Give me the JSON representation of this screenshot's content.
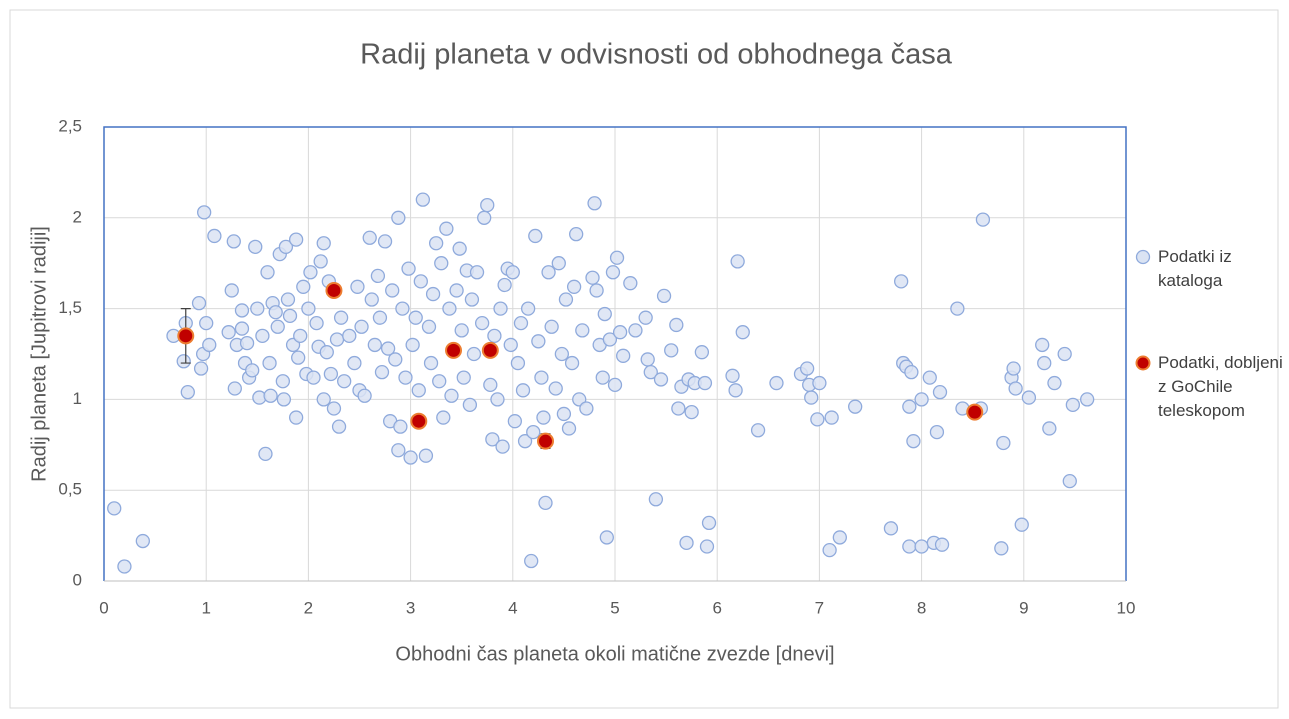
{
  "chart_data": {
    "type": "scatter",
    "title": "Radij planeta v odvisnosti od obhodnega časa",
    "xlabel": "Obhodni čas planeta okoli matične zvezde [dnevi]",
    "ylabel": "Radij planeta [Jupitrovi radiji]",
    "xlim": [
      0,
      10
    ],
    "xticks": [
      0,
      1,
      2,
      3,
      4,
      5,
      6,
      7,
      8,
      9,
      10
    ],
    "ylim": [
      0,
      2.5
    ],
    "yticks": [
      0,
      {
        "value": 0.5,
        "label": "0,5"
      },
      1,
      {
        "value": 1.5,
        "label": "1,5"
      },
      2,
      {
        "value": 2.5,
        "label": "2,5"
      }
    ],
    "grid": true,
    "legend": "right",
    "series": [
      {
        "name": "Podatki iz kataloga",
        "color": "#dae3f3",
        "edgecolor": "#8faadc",
        "x": [
          0.1,
          0.2,
          0.38,
          0.68,
          0.78,
          0.8,
          0.82,
          0.93,
          0.95,
          0.97,
          0.98,
          1.0,
          1.03,
          1.08,
          1.22,
          1.25,
          1.27,
          1.28,
          1.3,
          1.35,
          1.35,
          1.38,
          1.4,
          1.42,
          1.45,
          1.48,
          1.5,
          1.52,
          1.55,
          1.58,
          1.6,
          1.62,
          1.63,
          1.65,
          1.68,
          1.7,
          1.72,
          1.75,
          1.76,
          1.78,
          1.8,
          1.82,
          1.85,
          1.88,
          1.88,
          1.9,
          1.92,
          1.95,
          1.98,
          2.0,
          2.02,
          2.05,
          2.08,
          2.1,
          2.12,
          2.15,
          2.15,
          2.18,
          2.2,
          2.22,
          2.25,
          2.28,
          2.3,
          2.32,
          2.35,
          2.4,
          2.45,
          2.48,
          2.5,
          2.52,
          2.55,
          2.6,
          2.62,
          2.65,
          2.68,
          2.7,
          2.72,
          2.75,
          2.78,
          2.8,
          2.82,
          2.85,
          2.88,
          2.88,
          2.9,
          2.92,
          2.95,
          2.98,
          3.0,
          3.02,
          3.05,
          3.08,
          3.1,
          3.12,
          3.15,
          3.18,
          3.2,
          3.22,
          3.25,
          3.28,
          3.3,
          3.32,
          3.35,
          3.38,
          3.4,
          3.45,
          3.48,
          3.5,
          3.52,
          3.55,
          3.58,
          3.6,
          3.62,
          3.65,
          3.7,
          3.72,
          3.75,
          3.78,
          3.8,
          3.82,
          3.85,
          3.88,
          3.9,
          3.92,
          3.95,
          3.98,
          4.0,
          4.02,
          4.05,
          4.08,
          4.1,
          4.12,
          4.15,
          4.18,
          4.2,
          4.22,
          4.25,
          4.28,
          4.3,
          4.32,
          4.35,
          4.38,
          4.42,
          4.45,
          4.48,
          4.5,
          4.52,
          4.55,
          4.58,
          4.6,
          4.62,
          4.65,
          4.68,
          4.72,
          4.78,
          4.8,
          4.82,
          4.85,
          4.88,
          4.9,
          4.92,
          4.95,
          4.98,
          5.0,
          5.02,
          5.05,
          5.08,
          5.15,
          5.2,
          5.3,
          5.32,
          5.35,
          5.4,
          5.45,
          5.48,
          5.55,
          5.6,
          5.62,
          5.65,
          5.7,
          5.72,
          5.75,
          5.78,
          5.85,
          5.88,
          5.9,
          5.92,
          6.15,
          6.2,
          6.25,
          6.18,
          6.4,
          6.58,
          6.82,
          6.88,
          6.9,
          6.92,
          6.98,
          7.0,
          7.1,
          7.12,
          7.2,
          7.35,
          7.7,
          7.8,
          7.82,
          7.85,
          7.88,
          7.88,
          7.9,
          7.92,
          8.0,
          8.0,
          8.08,
          8.12,
          8.15,
          8.18,
          8.2,
          8.35,
          8.4,
          8.58,
          8.6,
          8.78,
          8.8,
          8.88,
          8.9,
          8.92,
          8.98,
          9.05,
          9.18,
          9.2,
          9.25,
          9.3,
          9.4,
          9.45,
          9.48,
          9.62
        ],
        "values": [
          0.4,
          0.08,
          0.22,
          1.35,
          1.21,
          1.42,
          1.04,
          1.53,
          1.17,
          1.25,
          2.03,
          1.42,
          1.3,
          1.9,
          1.37,
          1.6,
          1.87,
          1.06,
          1.3,
          1.49,
          1.39,
          1.2,
          1.31,
          1.12,
          1.16,
          1.84,
          1.5,
          1.01,
          1.35,
          0.7,
          1.7,
          1.2,
          1.02,
          1.53,
          1.48,
          1.4,
          1.8,
          1.1,
          1.0,
          1.84,
          1.55,
          1.46,
          1.3,
          1.88,
          0.9,
          1.23,
          1.35,
          1.62,
          1.14,
          1.5,
          1.7,
          1.12,
          1.42,
          1.29,
          1.76,
          1.86,
          1.0,
          1.26,
          1.65,
          1.14,
          0.95,
          1.33,
          0.85,
          1.45,
          1.1,
          1.35,
          1.2,
          1.62,
          1.05,
          1.4,
          1.02,
          1.89,
          1.55,
          1.3,
          1.68,
          1.45,
          1.15,
          1.87,
          1.28,
          0.88,
          1.6,
          1.22,
          2.0,
          0.72,
          0.85,
          1.5,
          1.12,
          1.72,
          0.68,
          1.3,
          1.45,
          1.05,
          1.65,
          2.1,
          0.69,
          1.4,
          1.2,
          1.58,
          1.86,
          1.1,
          1.75,
          0.9,
          1.94,
          1.5,
          1.02,
          1.6,
          1.83,
          1.38,
          1.12,
          1.71,
          0.97,
          1.55,
          1.25,
          1.7,
          1.42,
          2.0,
          2.07,
          1.08,
          0.78,
          1.35,
          1.0,
          1.5,
          0.74,
          1.63,
          1.72,
          1.3,
          1.7,
          0.88,
          1.2,
          1.42,
          1.05,
          0.77,
          1.5,
          0.11,
          0.82,
          1.9,
          1.32,
          1.12,
          0.9,
          0.43,
          1.7,
          1.4,
          1.06,
          1.75,
          1.25,
          0.92,
          1.55,
          0.84,
          1.2,
          1.62,
          1.91,
          1.0,
          1.38,
          0.95,
          1.67,
          2.08,
          1.6,
          1.3,
          1.12,
          1.47,
          0.24,
          1.33,
          1.7,
          1.08,
          1.78,
          1.37,
          1.24,
          1.64,
          1.38,
          1.45,
          1.22,
          1.15,
          0.45,
          1.11,
          1.57,
          1.27,
          1.41,
          0.95,
          1.07,
          0.21,
          1.11,
          0.93,
          1.09,
          1.26,
          1.09,
          0.19,
          0.32,
          1.13,
          1.76,
          1.37,
          1.05,
          0.83,
          1.09,
          1.14,
          1.17,
          1.08,
          1.01,
          0.89,
          1.09,
          0.17,
          0.9,
          0.24,
          0.96,
          0.29,
          1.65,
          1.2,
          1.18,
          0.19,
          0.96,
          1.15,
          0.77,
          0.19,
          1.0,
          1.12,
          0.21,
          0.82,
          1.04,
          0.2,
          1.5,
          0.95,
          0.95,
          1.99,
          0.18,
          0.76,
          1.12,
          1.17,
          1.06,
          0.31,
          1.01,
          1.3,
          1.2,
          0.84,
          1.09,
          1.25,
          0.55,
          0.97,
          1.0
        ]
      },
      {
        "name": "Podatki, dobljeni z GoChile teleskopom",
        "color": "#c00000",
        "edgecolor": "#ed7d31",
        "x": [
          0.8,
          2.25,
          3.08,
          3.42,
          3.78,
          4.32,
          8.52
        ],
        "values": [
          1.35,
          1.6,
          0.88,
          1.27,
          1.27,
          0.77,
          0.93
        ],
        "errors": [
          0.15,
          0.03,
          0.02,
          0.03,
          0.03,
          0.04,
          0.03
        ]
      }
    ]
  }
}
